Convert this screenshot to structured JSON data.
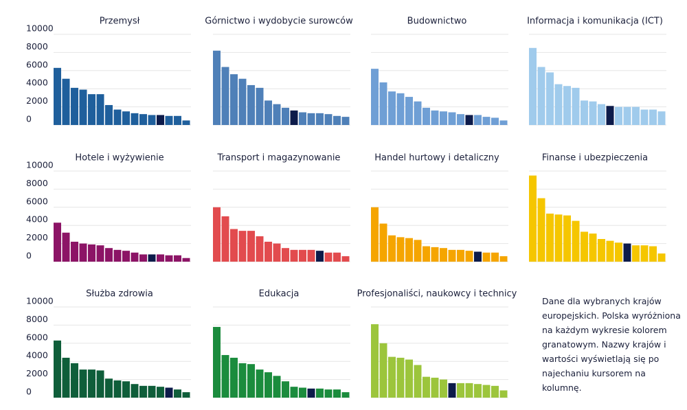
{
  "chart_data": [
    {
      "type": "bar",
      "title": "Przemysł",
      "values": [
        6300,
        5100,
        4100,
        3900,
        3400,
        3400,
        2200,
        1700,
        1500,
        1300,
        1200,
        1100,
        1100,
        1000,
        1000,
        500
      ],
      "color": "#1f5f9c",
      "highlight_index": 12,
      "highlight_color": "#0d1b4a",
      "ylim": [
        0,
        10000
      ],
      "yticks": [
        0,
        2000,
        4000,
        6000,
        8000,
        10000
      ],
      "grid": true
    },
    {
      "type": "bar",
      "title": "Górnictwo i wydobycie surowców",
      "values": [
        8200,
        6400,
        5600,
        5100,
        4400,
        4100,
        2700,
        2300,
        1900,
        1600,
        1400,
        1300,
        1300,
        1200,
        1000,
        900
      ],
      "color": "#4f80b8",
      "highlight_index": 9,
      "highlight_color": "#0d1b4a",
      "ylim": [
        0,
        10000
      ],
      "yticks": [
        0,
        2000,
        4000,
        6000,
        8000,
        10000
      ],
      "grid": true
    },
    {
      "type": "bar",
      "title": "Budownictwo",
      "values": [
        6200,
        4700,
        3700,
        3500,
        3100,
        2600,
        1900,
        1600,
        1500,
        1400,
        1200,
        1100,
        1100,
        900,
        800,
        500
      ],
      "color": "#6f9fd5",
      "highlight_index": 11,
      "highlight_color": "#0d1b4a",
      "ylim": [
        0,
        10000
      ],
      "yticks": [
        0,
        2000,
        4000,
        6000,
        8000,
        10000
      ],
      "grid": true
    },
    {
      "type": "bar",
      "title": "Informacja i komunikacja (ICT)",
      "values": [
        8500,
        6400,
        5800,
        4500,
        4300,
        4100,
        2700,
        2600,
        2300,
        2100,
        2000,
        2000,
        2000,
        1700,
        1700,
        1500
      ],
      "color": "#a0cbec",
      "highlight_index": 9,
      "highlight_color": "#0d1b4a",
      "ylim": [
        0,
        10000
      ],
      "yticks": [
        0,
        2000,
        4000,
        6000,
        8000,
        10000
      ],
      "grid": true
    },
    {
      "type": "bar",
      "title": "Hotele i wyżywienie",
      "values": [
        4300,
        3200,
        2200,
        2000,
        1900,
        1800,
        1500,
        1300,
        1200,
        1000,
        800,
        800,
        800,
        700,
        700,
        400
      ],
      "color": "#8c1466",
      "highlight_index": 11,
      "highlight_color": "#0d1b4a",
      "ylim": [
        0,
        10000
      ],
      "yticks": [
        0,
        2000,
        4000,
        6000,
        8000,
        10000
      ],
      "grid": true
    },
    {
      "type": "bar",
      "title": "Transport i magazynowanie",
      "values": [
        6000,
        5000,
        3600,
        3400,
        3400,
        2800,
        2200,
        2000,
        1500,
        1300,
        1300,
        1300,
        1200,
        1000,
        1000,
        600
      ],
      "color": "#e24b4e",
      "highlight_index": 12,
      "highlight_color": "#0d1b4a",
      "ylim": [
        0,
        10000
      ],
      "yticks": [
        0,
        2000,
        4000,
        6000,
        8000,
        10000
      ],
      "grid": true
    },
    {
      "type": "bar",
      "title": "Handel hurtowy i detaliczny",
      "values": [
        6000,
        4200,
        2900,
        2700,
        2600,
        2400,
        1700,
        1600,
        1500,
        1300,
        1300,
        1200,
        1100,
        1000,
        1000,
        600
      ],
      "color": "#f5a500",
      "highlight_index": 12,
      "highlight_color": "#0d1b4a",
      "ylim": [
        0,
        10000
      ],
      "yticks": [
        0,
        2000,
        4000,
        6000,
        8000,
        10000
      ],
      "grid": true
    },
    {
      "type": "bar",
      "title": "Finanse i ubezpieczenia",
      "values": [
        9500,
        7000,
        5300,
        5200,
        5100,
        4500,
        3300,
        3100,
        2500,
        2300,
        2100,
        2000,
        1800,
        1800,
        1700,
        900
      ],
      "color": "#f5c600",
      "highlight_index": 11,
      "highlight_color": "#0d1b4a",
      "ylim": [
        0,
        10000
      ],
      "yticks": [
        0,
        2000,
        4000,
        6000,
        8000,
        10000
      ],
      "grid": true
    },
    {
      "type": "bar",
      "title": "Służba zdrowia",
      "values": [
        6300,
        4400,
        3800,
        3100,
        3100,
        3000,
        2100,
        1900,
        1800,
        1500,
        1300,
        1300,
        1200,
        1100,
        900,
        600
      ],
      "color": "#0f5e3a",
      "highlight_index": 13,
      "highlight_color": "#0d1b4a",
      "ylim": [
        0,
        10000
      ],
      "yticks": [
        0,
        2000,
        4000,
        6000,
        8000,
        10000
      ],
      "grid": true
    },
    {
      "type": "bar",
      "title": "Edukacja",
      "values": [
        7800,
        4700,
        4400,
        3800,
        3700,
        3100,
        2800,
        2400,
        1800,
        1200,
        1100,
        1000,
        1000,
        900,
        900,
        600
      ],
      "color": "#1b8c3d",
      "highlight_index": 11,
      "highlight_color": "#0d1b4a",
      "ylim": [
        0,
        10000
      ],
      "yticks": [
        0,
        2000,
        4000,
        6000,
        8000,
        10000
      ],
      "grid": true
    },
    {
      "type": "bar",
      "title": "Profesjonaliści, naukowcy i technicy",
      "values": [
        8100,
        6000,
        4500,
        4400,
        4200,
        3600,
        2300,
        2200,
        2000,
        1600,
        1600,
        1600,
        1500,
        1400,
        1300,
        800
      ],
      "color": "#9cc53c",
      "highlight_index": 9,
      "highlight_color": "#0d1b4a",
      "ylim": [
        0,
        10000
      ],
      "yticks": [
        0,
        2000,
        4000,
        6000,
        8000,
        10000
      ],
      "grid": true
    }
  ],
  "note": "Dane dla wybranych krajów europejskich. Polska wyróżniona na każdym wykresie kolorem granatowym. Nazwy krajów i wartości wyświetlają się po najechaniu kursorem na kolumnę."
}
